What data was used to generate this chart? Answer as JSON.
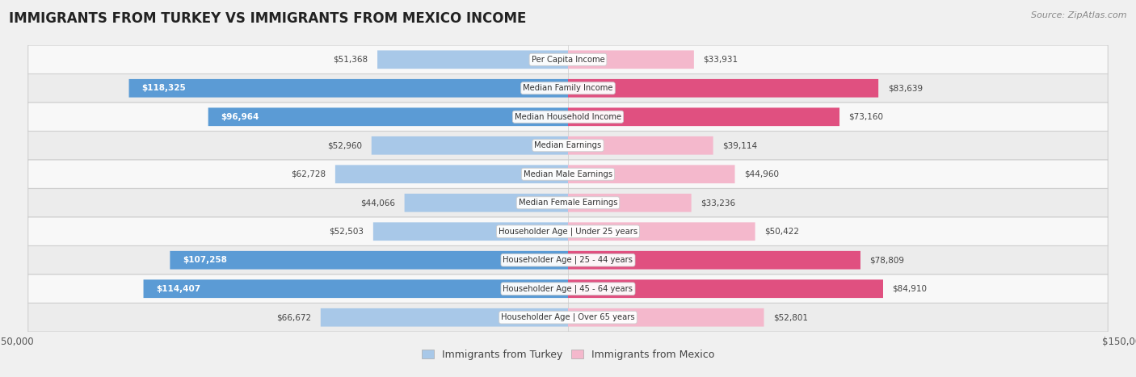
{
  "title": "IMMIGRANTS FROM TURKEY VS IMMIGRANTS FROM MEXICO INCOME",
  "source": "Source: ZipAtlas.com",
  "categories": [
    "Per Capita Income",
    "Median Family Income",
    "Median Household Income",
    "Median Earnings",
    "Median Male Earnings",
    "Median Female Earnings",
    "Householder Age | Under 25 years",
    "Householder Age | 25 - 44 years",
    "Householder Age | 45 - 64 years",
    "Householder Age | Over 65 years"
  ],
  "turkey_values": [
    51368,
    118325,
    96964,
    52960,
    62728,
    44066,
    52503,
    107258,
    114407,
    66672
  ],
  "mexico_values": [
    33931,
    83639,
    73160,
    39114,
    44960,
    33236,
    50422,
    78809,
    84910,
    52801
  ],
  "turkey_color_light": "#a8c8e8",
  "turkey_color_dark": "#5b9bd5",
  "mexico_color_light": "#f4b8cc",
  "mexico_color_dark": "#e05080",
  "turkey_threshold": 80000,
  "mexico_threshold": 60000,
  "max_value": 150000,
  "bar_height": 0.62,
  "background_color": "#f0f0f0",
  "row_bg_colors": [
    "#f8f8f8",
    "#ececec"
  ],
  "legend_turkey": "Immigrants from Turkey",
  "legend_mexico": "Immigrants from Mexico"
}
